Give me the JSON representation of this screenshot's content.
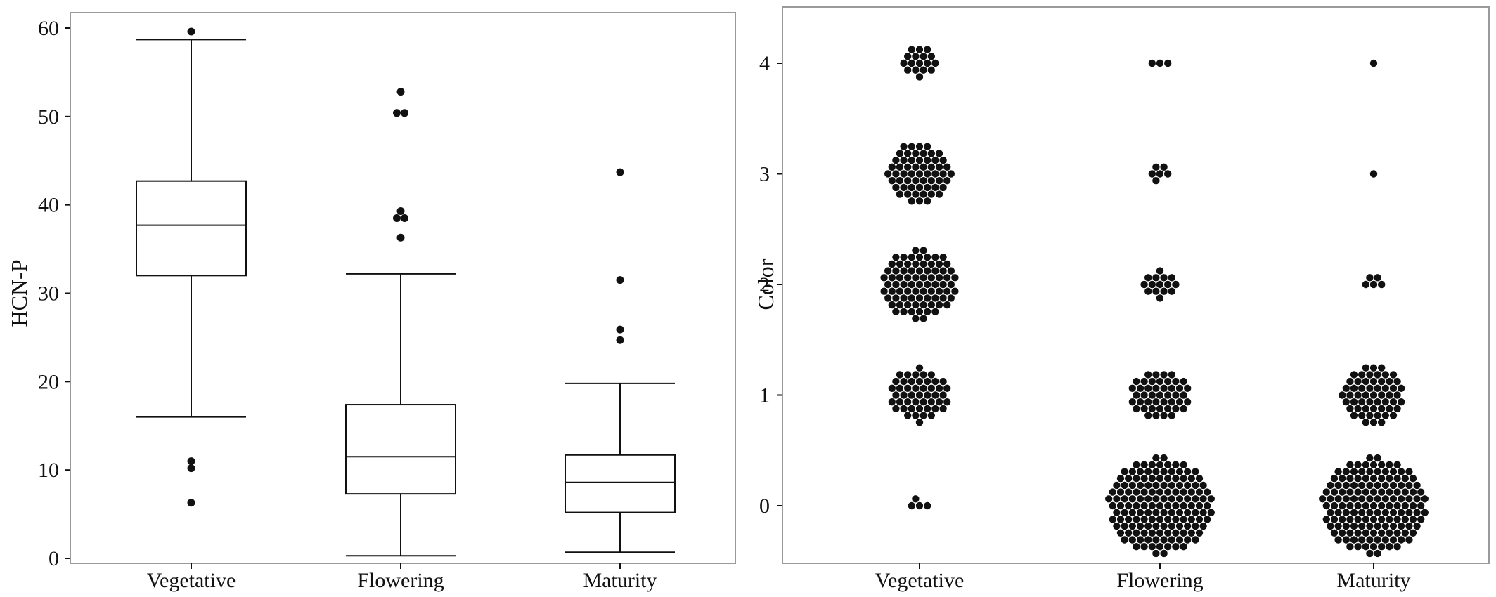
{
  "chart_data": [
    {
      "type": "box",
      "ylabel": "HCN-P",
      "ylim": [
        0,
        60
      ],
      "yticks": [
        0,
        10,
        20,
        30,
        40,
        50,
        60
      ],
      "categories": [
        "Vegetative",
        "Flowering",
        "Maturity"
      ],
      "boxes": [
        {
          "category": "Vegetative",
          "whisker_low": 16,
          "q1": 32,
          "median": 37.7,
          "q3": 42.7,
          "whisker_high": 58.7,
          "outliers": [
            59.6,
            11,
            10.2,
            6.3
          ]
        },
        {
          "category": "Flowering",
          "whisker_low": 0.3,
          "q1": 7.3,
          "median": 11.5,
          "q3": 17.4,
          "whisker_high": 32.2,
          "outliers": [
            52.8,
            50.4,
            50.4,
            39.3,
            38.5,
            38.5,
            36.3
          ]
        },
        {
          "category": "Maturity",
          "whisker_low": 0.7,
          "q1": 5.2,
          "median": 8.6,
          "q3": 11.7,
          "whisker_high": 19.8,
          "outliers": [
            43.7,
            31.5,
            25.9,
            24.7
          ]
        }
      ]
    },
    {
      "type": "dotplot",
      "ylabel": "Color",
      "ylim": [
        0,
        4
      ],
      "yticks": [
        0,
        1,
        2,
        3,
        4
      ],
      "categories": [
        "Vegetative",
        "Flowering",
        "Maturity"
      ],
      "levels": [
        0,
        1,
        2,
        3,
        4
      ],
      "counts": [
        {
          "category": "Vegetative",
          "values": [
            4,
            48,
            80,
            58,
            17
          ]
        },
        {
          "category": "Flowering",
          "values": [
            150,
            45,
            15,
            6,
            3
          ]
        },
        {
          "category": "Maturity",
          "values": [
            150,
            56,
            5,
            1,
            1
          ]
        }
      ]
    }
  ],
  "colors": {
    "frame": "#9a9a9a",
    "ink": "#111111",
    "background": "#ffffff"
  }
}
